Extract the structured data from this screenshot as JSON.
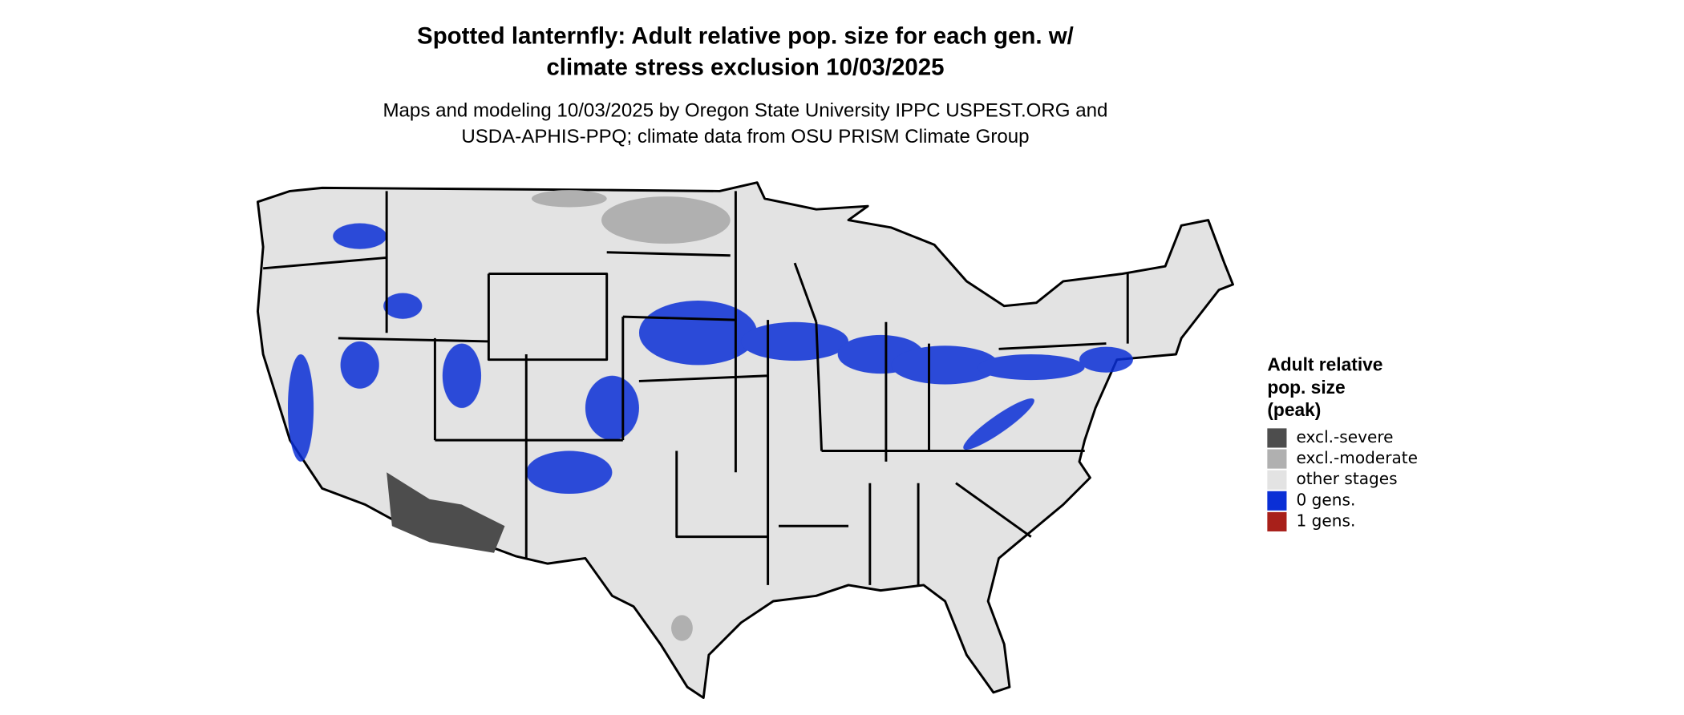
{
  "title_lines": [
    "Spotted lanternfly: Adult relative pop. size for each gen. w/",
    "climate stress exclusion 10/03/2025"
  ],
  "subtitle_lines": [
    "Maps and modeling 10/03/2025 by Oregon State University IPPC USPEST.ORG and",
    "USDA-APHIS-PPQ; climate data from OSU PRISM Climate Group"
  ],
  "legend": {
    "title_lines": [
      "Adult relative",
      "pop. size",
      "(peak)"
    ],
    "items": [
      {
        "label": "excl.-severe",
        "color": "#4d4d4d"
      },
      {
        "label": "excl.-moderate",
        "color": "#b0b0b0"
      },
      {
        "label": "other stages",
        "color": "#e3e3e3"
      },
      {
        "label": "0 gens.",
        "color": "#0a2fd6"
      },
      {
        "label": "1 gens.",
        "color": "#a8201a"
      }
    ]
  }
}
